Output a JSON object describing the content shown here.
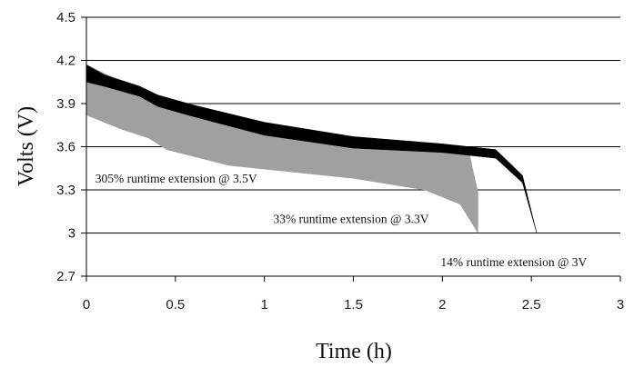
{
  "chart_data": {
    "type": "area",
    "xlabel": "Time (h)",
    "ylabel": "Volts (V)",
    "xlim": [
      0,
      3
    ],
    "ylim": [
      2.7,
      4.5
    ],
    "xticks": [
      0,
      0.5,
      1,
      1.5,
      2,
      2.5,
      3
    ],
    "xtick_labels": [
      "0",
      "0.5",
      "1",
      "1.5",
      "2",
      "2.5",
      "3"
    ],
    "yticks": [
      2.7,
      3,
      3.3,
      3.6,
      3.9,
      4.2,
      4.5
    ],
    "ytick_labels": [
      "2.7",
      "3",
      "3.3",
      "3.6",
      "3.9",
      "4.2",
      "4.5"
    ],
    "grid": "horizontal",
    "legend": "none",
    "colors": {
      "band_gray": "#a0a0a0",
      "band_black": "#000000",
      "grid": "#000000"
    },
    "series": [
      {
        "color": "#a0a0a0",
        "upper": {
          "x": [
            0,
            0.2,
            0.4,
            0.6,
            1.0,
            1.5,
            2.0,
            2.15,
            2.2
          ],
          "y": [
            4.17,
            4.05,
            3.95,
            3.86,
            3.75,
            3.67,
            3.6,
            3.56,
            3.28
          ]
        },
        "lower": {
          "x": [
            0,
            0.2,
            0.35,
            0.45,
            0.8,
            1.5,
            1.9,
            2.1,
            2.2
          ],
          "y": [
            3.82,
            3.72,
            3.66,
            3.58,
            3.47,
            3.38,
            3.3,
            3.2,
            3.0
          ]
        }
      },
      {
        "color": "#000000",
        "upper": {
          "x": [
            0,
            0.1,
            0.3,
            0.4,
            0.6,
            1.0,
            1.5,
            2.0,
            2.3,
            2.45,
            2.53
          ],
          "y": [
            4.17,
            4.1,
            4.02,
            3.96,
            3.89,
            3.77,
            3.67,
            3.62,
            3.58,
            3.4,
            3.0
          ]
        },
        "lower": {
          "x": [
            0,
            0.1,
            0.3,
            0.4,
            0.6,
            1.0,
            1.5,
            2.0,
            2.3,
            2.45,
            2.53
          ],
          "y": [
            4.05,
            4.02,
            3.95,
            3.88,
            3.81,
            3.68,
            3.59,
            3.56,
            3.52,
            3.35,
            3.0
          ]
        }
      }
    ],
    "annotations": [
      {
        "text": "305% runtime extension @ 3.5V",
        "x": 0.05,
        "y": 3.35
      },
      {
        "text": "33% runtime extension @ 3.3V",
        "x": 1.05,
        "y": 3.07
      },
      {
        "text": "14% runtime extension @ 3V",
        "x": 1.99,
        "y": 2.77
      }
    ]
  }
}
